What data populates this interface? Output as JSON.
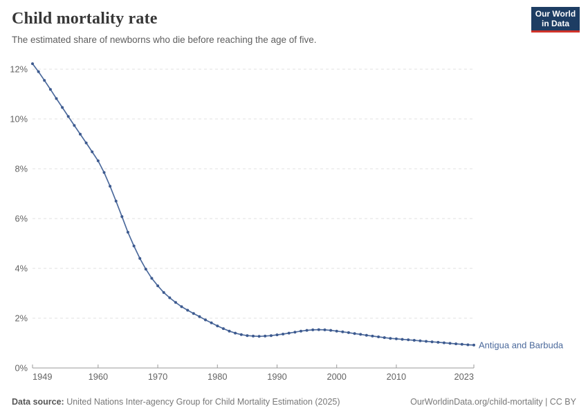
{
  "header": {
    "title": "Child mortality rate",
    "subtitle": "The estimated share of newborns who die before reaching the age of five.",
    "logo": {
      "line1": "Our World",
      "line2": "in Data"
    }
  },
  "colors": {
    "series": "#4c6a9c",
    "series_marker": "#3d5a8f",
    "logo_bg": "#1d3d63",
    "logo_accent": "#d0332a",
    "grid": "#e0e0e0",
    "axis": "#9a9a9a",
    "tick_text": "#636363"
  },
  "chart_data": {
    "type": "line",
    "title": "Child mortality rate",
    "xlabel": "",
    "ylabel": "",
    "xlim": [
      1949,
      2023
    ],
    "ylim": [
      0,
      12.3
    ],
    "x_ticks": [
      1949,
      1960,
      1970,
      1980,
      1990,
      2000,
      2010,
      2023
    ],
    "y_ticks": [
      0,
      2,
      4,
      6,
      8,
      10,
      12
    ],
    "y_tick_suffix": "%",
    "grid": "dashed-horizontal",
    "legend_position": "end-of-line-label",
    "series": [
      {
        "name": "Antigua and Barbuda",
        "color": "#4c6a9c",
        "x": [
          1949,
          1950,
          1951,
          1952,
          1953,
          1954,
          1955,
          1956,
          1957,
          1958,
          1959,
          1960,
          1961,
          1962,
          1963,
          1964,
          1965,
          1966,
          1967,
          1968,
          1969,
          1970,
          1971,
          1972,
          1973,
          1974,
          1975,
          1976,
          1977,
          1978,
          1979,
          1980,
          1981,
          1982,
          1983,
          1984,
          1985,
          1986,
          1987,
          1988,
          1989,
          1990,
          1991,
          1992,
          1993,
          1994,
          1995,
          1996,
          1997,
          1998,
          1999,
          2000,
          2001,
          2002,
          2003,
          2004,
          2005,
          2006,
          2007,
          2008,
          2009,
          2010,
          2011,
          2012,
          2013,
          2014,
          2015,
          2016,
          2017,
          2018,
          2019,
          2020,
          2021,
          2022,
          2023
        ],
        "values": [
          12.22,
          11.9,
          11.55,
          11.19,
          10.82,
          10.46,
          10.1,
          9.74,
          9.39,
          9.04,
          8.68,
          8.32,
          7.85,
          7.3,
          6.7,
          6.08,
          5.45,
          4.9,
          4.4,
          3.97,
          3.6,
          3.3,
          3.03,
          2.82,
          2.63,
          2.46,
          2.32,
          2.19,
          2.06,
          1.93,
          1.81,
          1.69,
          1.58,
          1.48,
          1.4,
          1.34,
          1.3,
          1.28,
          1.27,
          1.28,
          1.3,
          1.33,
          1.36,
          1.4,
          1.44,
          1.48,
          1.51,
          1.53,
          1.54,
          1.53,
          1.51,
          1.48,
          1.45,
          1.42,
          1.38,
          1.35,
          1.31,
          1.28,
          1.25,
          1.22,
          1.19,
          1.17,
          1.15,
          1.13,
          1.11,
          1.09,
          1.07,
          1.05,
          1.03,
          1.01,
          0.99,
          0.97,
          0.95,
          0.93,
          0.92
        ]
      }
    ]
  },
  "footer": {
    "data_source_label": "Data source:",
    "data_source": " United Nations Inter-agency Group for Child Mortality Estimation (2025)",
    "link": "OurWorldinData.org/child-mortality | CC BY"
  }
}
